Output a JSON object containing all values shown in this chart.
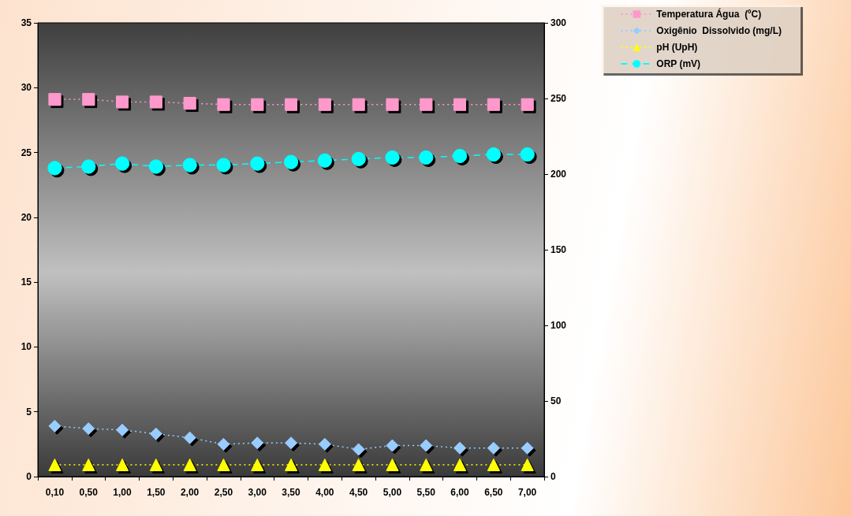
{
  "chart_data": {
    "type": "line",
    "categories": [
      "0,10",
      "0,50",
      "1,00",
      "1,50",
      "2,00",
      "2,50",
      "3,00",
      "3,50",
      "4,00",
      "4,50",
      "5,00",
      "5,50",
      "6,00",
      "6,50",
      "7,00"
    ],
    "series": [
      {
        "name": "Temperatura Água  (ºC)",
        "color": "#ff99cc",
        "marker": "square",
        "line_style": "dotted",
        "values": [
          29.1,
          29.1,
          28.9,
          28.9,
          28.8,
          28.7,
          28.7,
          28.7,
          28.7,
          28.7,
          28.7,
          28.7,
          28.7,
          28.7,
          28.7
        ]
      },
      {
        "name": "Oxigênio  Dissolvido (mg/L)",
        "color": "#99ccff",
        "marker": "diamond",
        "line_style": "dotted",
        "values": [
          3.9,
          3.7,
          3.6,
          3.3,
          3.0,
          2.5,
          2.6,
          2.6,
          2.5,
          2.1,
          2.4,
          2.4,
          2.2,
          2.2,
          2.2
        ]
      },
      {
        "name": "pH (UpH)",
        "color": "#ffff00",
        "marker": "triangle",
        "line_style": "dotted",
        "axis": "y2",
        "values": [
          7.8,
          7.8,
          7.8,
          7.8,
          7.8,
          7.8,
          7.8,
          7.8,
          7.8,
          7.8,
          7.8,
          7.8,
          7.8,
          7.8,
          7.8
        ]
      },
      {
        "name": "ORP (mV)",
        "color": "#00ffff",
        "marker": "circle",
        "line_style": "dashed",
        "axis": "y2",
        "values": [
          204,
          205,
          207,
          205,
          206,
          206,
          207,
          208,
          209,
          210,
          211,
          211,
          212,
          213,
          213
        ]
      }
    ],
    "ylim": [
      0,
      35
    ],
    "yticks": [
      0,
      5,
      10,
      15,
      20,
      25,
      30,
      35
    ],
    "y2lim": [
      0,
      300
    ],
    "y2ticks": [
      0,
      50,
      100,
      150,
      200,
      250,
      300
    ],
    "grid": false,
    "legend": "top right"
  }
}
